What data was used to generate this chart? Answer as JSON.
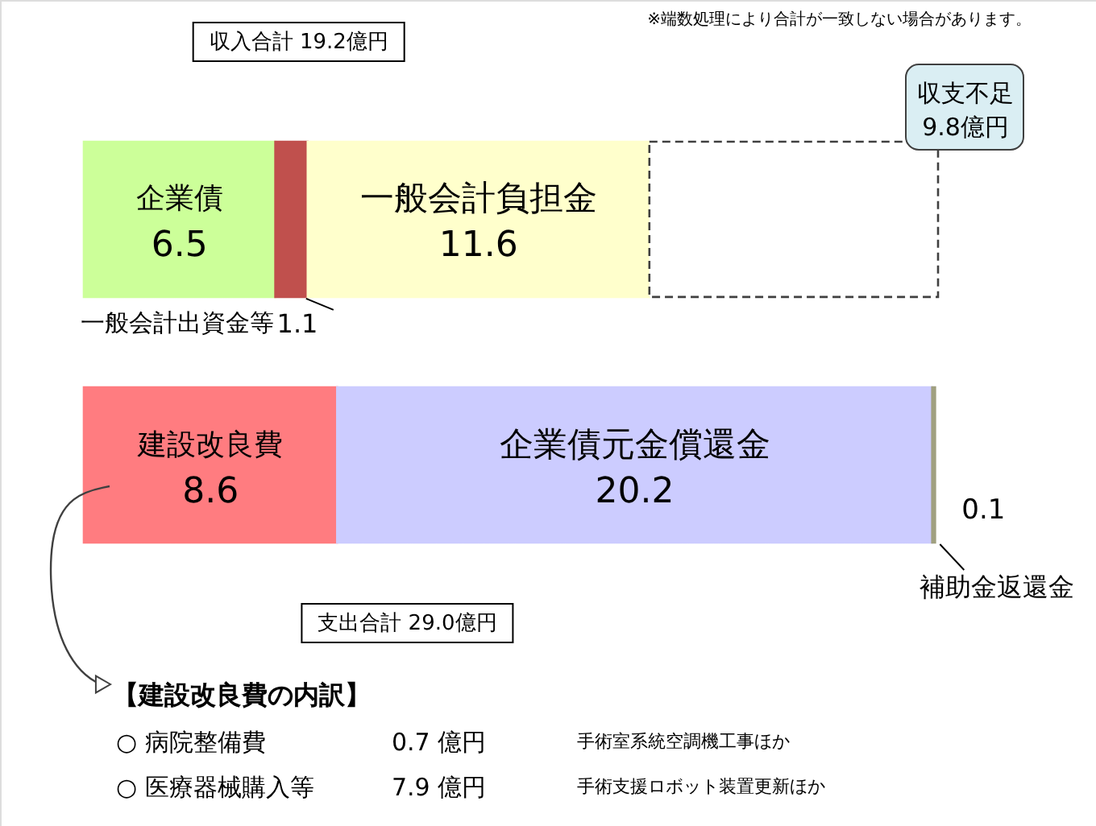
{
  "chart_data": {
    "type": "bar",
    "orientation": "horizontal",
    "stacked": true,
    "tick_labels": false,
    "categories": [
      null,
      null
    ],
    "series": [
      {
        "name": "企業債",
        "color": "#ccff99",
        "values": [
          6.5,
          null
        ],
        "value_labels": [
          "6.5",
          null
        ]
      },
      {
        "name": "一般会計出資金等",
        "color": "#c0504d",
        "values": [
          1.1,
          null
        ],
        "value_labels": [
          "1.1",
          null
        ]
      },
      {
        "name": "一般会計負担金",
        "color": "#ffffcc",
        "values": [
          11.6,
          null
        ],
        "value_labels": [
          "11.6",
          null
        ]
      },
      {
        "name": "収支不足",
        "color": "#ffffff",
        "line_style": "dashed",
        "values": [
          9.8,
          null
        ],
        "value_labels": [
          "9.8億円",
          null
        ]
      },
      {
        "name": "建設改良費",
        "color": "#ff7c80",
        "values": [
          null,
          8.6
        ],
        "value_labels": [
          null,
          "8.6"
        ]
      },
      {
        "name": "企業債元金償還金",
        "color": "#ccccff",
        "values": [
          null,
          20.2
        ],
        "value_labels": [
          null,
          "20.2"
        ]
      },
      {
        "name": "補助金返還金",
        "color": "#a0a080",
        "values": [
          null,
          0.1
        ],
        "value_labels": [
          null,
          "0.1"
        ]
      }
    ],
    "annotations": [
      "※端数処理により合計が一致しない場合があります。",
      "収入合計 19.2億円",
      "支出合計 29.0億円",
      "【建設改良費の内訳】",
      "○ 病院整備費",
      "0.7 億円",
      "手術室系統空調機工事ほか",
      "○ 医療器械購入等",
      "7.9 億円",
      "手術支援ロボット装置更新ほか"
    ]
  }
}
